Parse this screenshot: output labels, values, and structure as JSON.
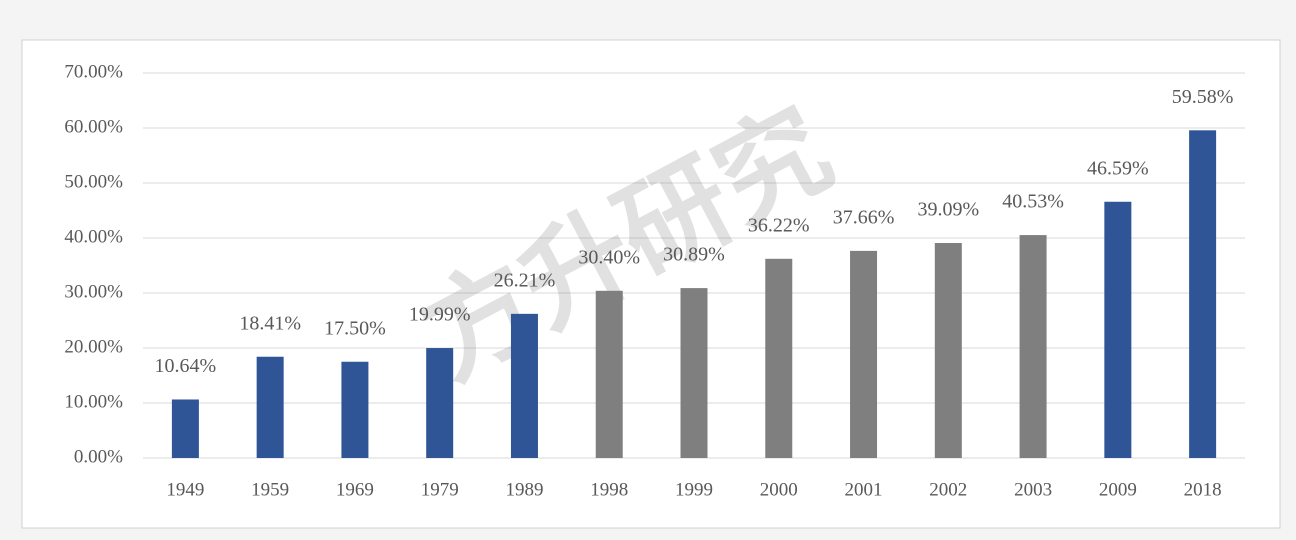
{
  "chart_data": {
    "type": "bar",
    "watermark": "方升研究",
    "categories": [
      "1949",
      "1959",
      "1969",
      "1979",
      "1989",
      "1998",
      "1999",
      "2000",
      "2001",
      "2002",
      "2003",
      "2009",
      "2018"
    ],
    "values": [
      10.64,
      18.41,
      17.5,
      19.99,
      26.21,
      30.4,
      30.89,
      36.22,
      37.66,
      39.09,
      40.53,
      46.59,
      59.58
    ],
    "value_labels": [
      "10.64%",
      "18.41%",
      "17.50%",
      "19.99%",
      "26.21%",
      "30.40%",
      "30.89%",
      "36.22%",
      "37.66%",
      "39.09%",
      "40.53%",
      "46.59%",
      "59.58%"
    ],
    "colors": [
      "#2f5597",
      "#2f5597",
      "#2f5597",
      "#2f5597",
      "#2f5597",
      "#7f7f7f",
      "#7f7f7f",
      "#7f7f7f",
      "#7f7f7f",
      "#7f7f7f",
      "#7f7f7f",
      "#2f5597",
      "#2f5597"
    ],
    "ylim": [
      0,
      70
    ],
    "yticks": [
      {
        "value": 0,
        "label": "0.00%"
      },
      {
        "value": 10,
        "label": "10.00%"
      },
      {
        "value": 20,
        "label": "20.00%"
      },
      {
        "value": 30,
        "label": "30.00%"
      },
      {
        "value": 40,
        "label": "40.00%"
      },
      {
        "value": 50,
        "label": "50.00%"
      },
      {
        "value": 60,
        "label": "60.00%"
      },
      {
        "value": 70,
        "label": "70.00%"
      }
    ],
    "grid": true
  }
}
